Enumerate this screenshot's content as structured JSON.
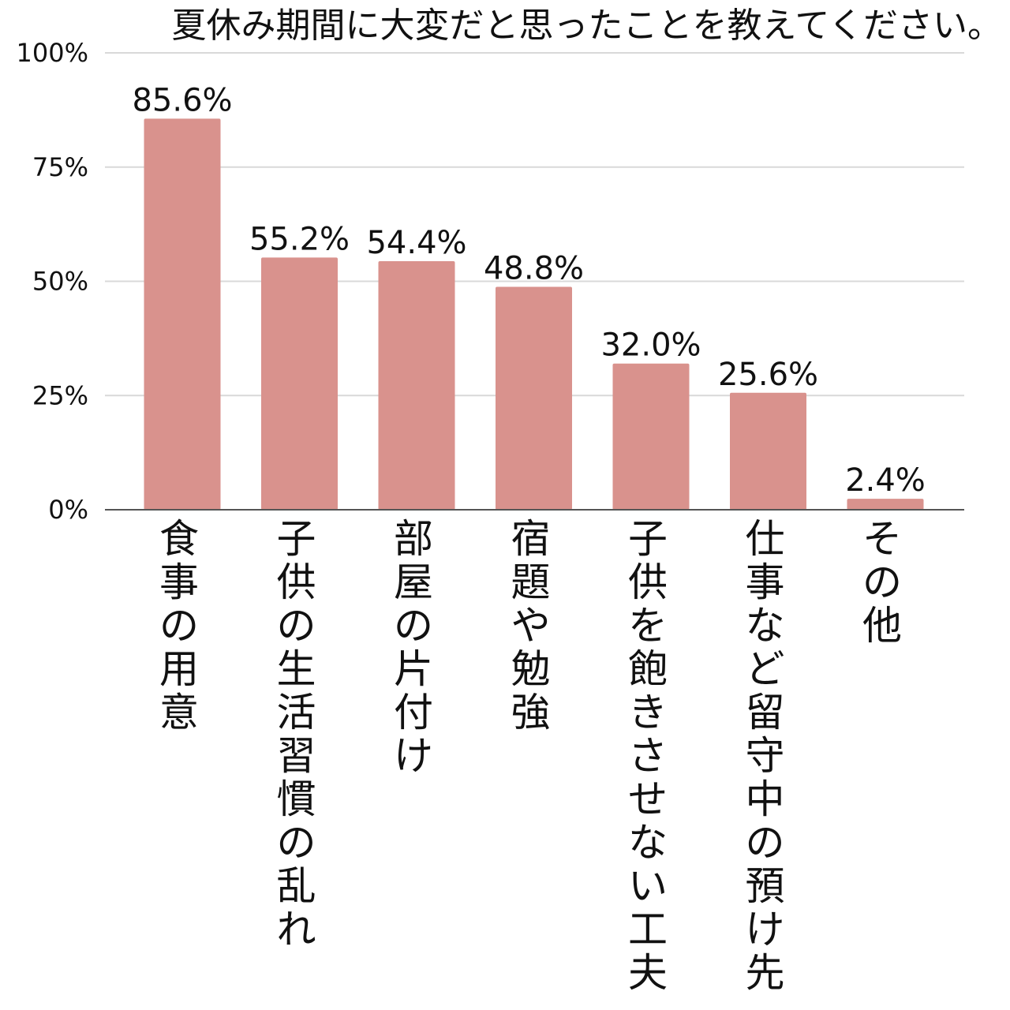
{
  "chart_data": {
    "type": "bar",
    "title": "夏休み期間に大変だと思ったことを教えてください。",
    "categories": [
      "食事の用意",
      "子供の生活習慣の乱れ",
      "部屋の片付け",
      "宿題や勉強",
      "子供を飽きさせない工夫",
      "仕事など留守中の預け先",
      "その他"
    ],
    "values": [
      85.6,
      55.2,
      54.4,
      48.8,
      32.0,
      25.6,
      2.4
    ],
    "data_labels": [
      "85.6%",
      "55.2%",
      "54.4%",
      "48.8%",
      "32.0%",
      "25.6%",
      "2.4%"
    ],
    "yticks": [
      0,
      25,
      50,
      75,
      100
    ],
    "ytick_labels": [
      "0%",
      "25%",
      "50%",
      "75%",
      "100%"
    ],
    "ylim": [
      0,
      100
    ],
    "xlabel": "",
    "ylabel": "",
    "grid": true,
    "legend": "none",
    "bar_color": "#d9928d",
    "grid_color": "#d9d9d9",
    "axis_color": "#555555"
  }
}
